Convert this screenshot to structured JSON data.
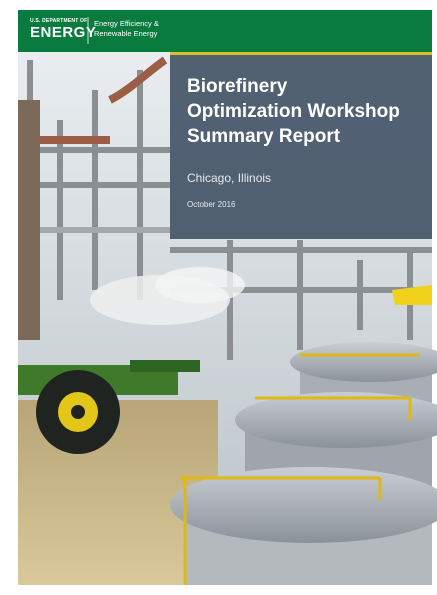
{
  "header": {
    "department": "U.S. DEPARTMENT OF",
    "agency": "ENERGY",
    "office_lines": [
      "Energy Efficiency &",
      "Renewable Energy"
    ]
  },
  "cover": {
    "title_lines": [
      "Biorefinery",
      "Optimization Workshop",
      "Summary Report"
    ],
    "location": "Chicago, Illinois",
    "date": "October 2016"
  }
}
